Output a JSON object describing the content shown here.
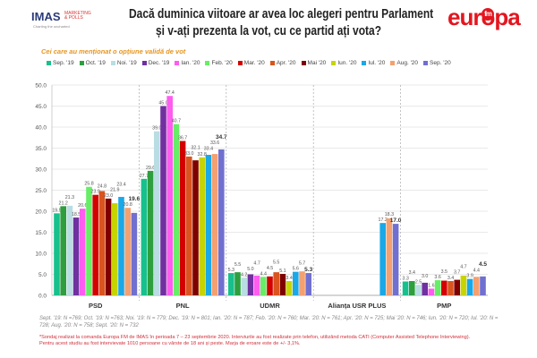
{
  "header": {
    "title_line1": "Dacă duminica viitoare ar avea loc alegeri pentru Parlament",
    "title_line2": "și v-ați prezenta la vot, cu ce partid ați vota?",
    "logo_left": "IMAS MARKETING & POLLS",
    "logo_right": "europa fm",
    "subtitle": "Cei care au menționat o opțiune validă de vot"
  },
  "chart_data": {
    "type": "bar",
    "title": "Dacă duminica viitoare ar avea loc alegeri pentru Parlament și v-ați prezenta la vot, cu ce partid ați vota?",
    "categories": [
      "PSD",
      "PNL",
      "UDMR",
      "Alianța USR PLUS",
      "PMP"
    ],
    "ylim": [
      0,
      50
    ],
    "yticks": [
      "0.0",
      "5.0",
      "10.0",
      "15.0",
      "20.0",
      "25.0",
      "30.0",
      "35.0",
      "40.0",
      "45.0",
      "50.0"
    ],
    "grid": true,
    "legend": "top",
    "series": [
      {
        "name": "Sep. '19",
        "color": "#17c08c",
        "values": [
          19.5,
          27.7,
          5.3,
          null,
          3.3
        ]
      },
      {
        "name": "Oct. '19",
        "color": "#2e9e3e",
        "values": [
          21.2,
          29.6,
          5.5,
          null,
          3.4
        ]
      },
      {
        "name": "Noi. '19",
        "color": "#b9dde2",
        "values": [
          21.3,
          39.0,
          4.2,
          null,
          2.5
        ]
      },
      {
        "name": "Dec. '19",
        "color": "#7030a0",
        "values": [
          18.5,
          45.0,
          5.0,
          null,
          3.0
        ]
      },
      {
        "name": "Ian. '20",
        "color": "#ff5cf0",
        "values": [
          20.6,
          47.4,
          4.7,
          null,
          1.6
        ]
      },
      {
        "name": "Feb. '20",
        "color": "#66ee66",
        "values": [
          25.8,
          40.7,
          4.4,
          null,
          3.6
        ]
      },
      {
        "name": "Mar. '20",
        "color": "#d40000",
        "values": [
          23.9,
          36.7,
          4.5,
          null,
          3.5
        ]
      },
      {
        "name": "Apr. '20",
        "color": "#d9541e",
        "values": [
          24.8,
          33.0,
          5.5,
          null,
          3.4
        ]
      },
      {
        "name": "Mai '20",
        "color": "#800000",
        "values": [
          23.0,
          32.1,
          5.1,
          null,
          3.7
        ]
      },
      {
        "name": "Iun. '20",
        "color": "#c8d400",
        "values": [
          21.9,
          32.8,
          3.4,
          null,
          4.7
        ]
      },
      {
        "name": "Iul. '20",
        "color": "#1aa8e8",
        "values": [
          23.4,
          33.4,
          5.6,
          17.2,
          3.9
        ]
      },
      {
        "name": "Aug. '20",
        "color": "#f4a070",
        "values": [
          20.8,
          33.6,
          5.7,
          18.3,
          4.4
        ]
      },
      {
        "name": "Sep. '20",
        "color": "#7070d0",
        "values": [
          19.6,
          34.7,
          5.3,
          17.0,
          4.5
        ]
      }
    ]
  },
  "notes": "Sept. '19: N =769; Oct. '19: N =763; Noi. '19: N = 779; Dec. '19: N = 801; Ian. '20: N = 787; Feb. '20: N = 760; Mar. '20: N = 761; Apr. '20: N = 725; Mai '20: N = 746; Iun. '20: N = 720; Iul. '20: N = 728; Aug. '20: N = 758; Sept. '20: N = 732",
  "footer_line1": "*Sondaj realizat la comanda Europa FM de IMAS în perioada 7 – 23 septembrie 2020. Interviurile au fost realizate prin telefon, utilizând metoda CATI (Computer Assisted Telephone Interviewing).",
  "footer_line2": "Pentru acest studiu au fost intervievate 1010 persoane cu vârste de 18 ani și peste. Marja de eroare este de +/- 3,1%."
}
